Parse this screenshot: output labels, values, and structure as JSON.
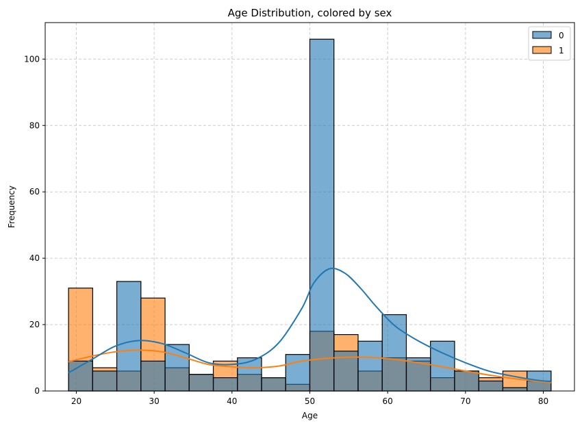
{
  "chart_data": {
    "type": "bar",
    "title": "Age Distribution, colored by sex",
    "xlabel": "Age",
    "ylabel": "Frequency",
    "xlim": [
      16,
      84
    ],
    "ylim": [
      0,
      111
    ],
    "xticks": [
      20,
      30,
      40,
      50,
      60,
      70,
      80
    ],
    "yticks": [
      0,
      20,
      40,
      60,
      80,
      100
    ],
    "grid": true,
    "legend_position": "top-right",
    "bin_edges": [
      19,
      22.1,
      25.2,
      28.3,
      31.4,
      34.5,
      37.6,
      40.7,
      43.8,
      46.9,
      50,
      53.1,
      56.2,
      59.3,
      62.4,
      65.5,
      68.6,
      71.7,
      74.8,
      77.9,
      81
    ],
    "series": [
      {
        "name": "0",
        "color": "#1f77b4",
        "values": [
          9,
          6,
          33,
          9,
          14,
          5,
          4,
          10,
          4,
          11,
          106,
          12,
          15,
          23,
          10,
          15,
          6,
          3,
          1,
          6
        ],
        "kde_x": [
          19,
          22,
          25,
          28,
          31,
          34,
          37,
          40,
          43,
          46,
          49,
          50.5,
          52.5,
          54.5,
          56.5,
          58.5,
          61,
          64,
          67,
          70,
          73,
          76,
          79,
          81
        ],
        "kde_y": [
          5.5,
          9.5,
          13.5,
          15.2,
          14.3,
          11.5,
          8.5,
          8,
          9.5,
          14.5,
          25,
          32.5,
          36.8,
          35.5,
          31,
          25.5,
          19.5,
          15,
          11.5,
          8.5,
          6,
          4.5,
          3.3,
          2.8
        ]
      },
      {
        "name": "1",
        "color": "#ff7f0e",
        "values": [
          31,
          7,
          6,
          28,
          7,
          5,
          9,
          5,
          4,
          2,
          18,
          17,
          6,
          10,
          9,
          4,
          6,
          4,
          6,
          3
        ],
        "kde_x": [
          19,
          22,
          25,
          28,
          31,
          34,
          37,
          40,
          43,
          46,
          49,
          52,
          55,
          58,
          61,
          64,
          67,
          70,
          73,
          76,
          79,
          81
        ],
        "kde_y": [
          8.8,
          10.5,
          11.8,
          12.3,
          11.8,
          10,
          8,
          7.3,
          7,
          7.5,
          9,
          9.8,
          10.2,
          10.1,
          9.5,
          8.5,
          7.3,
          6,
          4.8,
          3.8,
          3,
          2.5
        ]
      }
    ]
  }
}
